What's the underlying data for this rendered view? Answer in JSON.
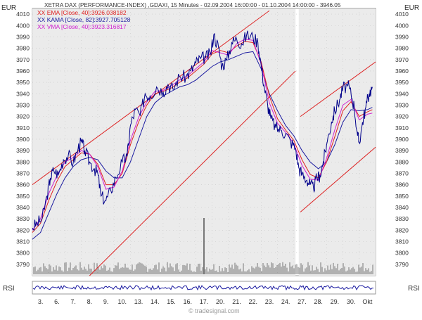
{
  "header": {
    "title": "XETRA DAX (PERFORMANCE-INDEX) ,GDAXI, 15 Minutes - 02.09.2004 16:00:00 - 01.10.2004 14:00:00 - 3946.05",
    "legend": [
      {
        "label": "XX EMA [Close, 40]:3926.038182",
        "color": "#e02020"
      },
      {
        "label": "XX KAMA [Close, 82]:3927.705128",
        "color": "#1a1aa0"
      },
      {
        "label": "XX VMA [Close, 40]:3923.316817",
        "color": "#d020d0"
      }
    ],
    "currency_left": "EUR",
    "currency_right": "EUR",
    "rsi_label_left": "RSI",
    "rsi_label_right": "RSI",
    "watermark": "© tradesignal.com"
  },
  "colors": {
    "price": "#00008b",
    "ema": "#e02020",
    "kama": "#1a1aa0",
    "vma": "#d020d0",
    "channel": "#dd2222",
    "volume": "#777777",
    "rsi": "#1a1aa0",
    "shade": "#ebebeb"
  },
  "chart_data": {
    "type": "line",
    "ylim": [
      3780,
      4015
    ],
    "y_ticks": [
      3790,
      3800,
      3810,
      3820,
      3830,
      3840,
      3850,
      3860,
      3870,
      3880,
      3890,
      3900,
      3910,
      3920,
      3930,
      3940,
      3950,
      3960,
      3970,
      3980,
      3990,
      4000,
      4010
    ],
    "x_range": [
      0,
      21
    ],
    "x_ticks": [
      {
        "x": 0.5,
        "label": "3."
      },
      {
        "x": 1.5,
        "label": "6."
      },
      {
        "x": 2.5,
        "label": "7."
      },
      {
        "x": 3.5,
        "label": "8."
      },
      {
        "x": 4.5,
        "label": "9."
      },
      {
        "x": 5.5,
        "label": "10."
      },
      {
        "x": 6.5,
        "label": "13."
      },
      {
        "x": 7.5,
        "label": "14."
      },
      {
        "x": 8.5,
        "label": "15."
      },
      {
        "x": 9.5,
        "label": "16."
      },
      {
        "x": 10.5,
        "label": "17."
      },
      {
        "x": 11.5,
        "label": "20."
      },
      {
        "x": 12.5,
        "label": "21."
      },
      {
        "x": 13.5,
        "label": "22."
      },
      {
        "x": 14.5,
        "label": "23."
      },
      {
        "x": 15.5,
        "label": "24."
      },
      {
        "x": 16.5,
        "label": "27."
      },
      {
        "x": 17.5,
        "label": "28."
      },
      {
        "x": 18.5,
        "label": "29."
      },
      {
        "x": 19.5,
        "label": "30."
      },
      {
        "x": 20.5,
        "label": "Okt"
      }
    ],
    "price": [
      [
        0.0,
        3822
      ],
      [
        0.3,
        3826
      ],
      [
        0.6,
        3830
      ],
      [
        0.9,
        3850
      ],
      [
        1.1,
        3866
      ],
      [
        1.3,
        3873
      ],
      [
        1.6,
        3869
      ],
      [
        1.9,
        3882
      ],
      [
        2.2,
        3886
      ],
      [
        2.5,
        3879
      ],
      [
        2.8,
        3892
      ],
      [
        3.0,
        3898
      ],
      [
        3.2,
        3890
      ],
      [
        3.5,
        3880
      ],
      [
        3.8,
        3874
      ],
      [
        4.0,
        3870
      ],
      [
        4.2,
        3850
      ],
      [
        4.5,
        3846
      ],
      [
        4.8,
        3855
      ],
      [
        5.1,
        3866
      ],
      [
        5.5,
        3880
      ],
      [
        5.8,
        3885
      ],
      [
        6.0,
        3912
      ],
      [
        6.3,
        3926
      ],
      [
        6.6,
        3921
      ],
      [
        6.9,
        3940
      ],
      [
        7.2,
        3938
      ],
      [
        7.6,
        3946
      ],
      [
        8.0,
        3942
      ],
      [
        8.3,
        3948
      ],
      [
        8.6,
        3944
      ],
      [
        9.0,
        3955
      ],
      [
        9.4,
        3955
      ],
      [
        9.7,
        3960
      ],
      [
        10.0,
        3967
      ],
      [
        10.3,
        3971
      ],
      [
        10.6,
        3972
      ],
      [
        10.9,
        3975
      ],
      [
        11.1,
        3992
      ],
      [
        11.4,
        3980
      ],
      [
        11.6,
        3964
      ],
      [
        11.9,
        3970
      ],
      [
        12.2,
        3985
      ],
      [
        12.5,
        3988
      ],
      [
        12.8,
        3984
      ],
      [
        13.1,
        3991
      ],
      [
        13.5,
        3990
      ],
      [
        13.8,
        3985
      ],
      [
        14.0,
        3965
      ],
      [
        14.2,
        3945
      ],
      [
        14.4,
        3930
      ],
      [
        14.6,
        3918
      ],
      [
        14.9,
        3910
      ],
      [
        15.2,
        3908
      ],
      [
        15.5,
        3905
      ],
      [
        15.8,
        3898
      ],
      [
        16.1,
        3892
      ],
      [
        16.3,
        3875
      ],
      [
        16.5,
        3869
      ],
      [
        16.8,
        3864
      ],
      [
        17.0,
        3860
      ],
      [
        17.2,
        3857
      ],
      [
        17.4,
        3866
      ],
      [
        17.6,
        3868
      ],
      [
        17.8,
        3880
      ],
      [
        18.0,
        3895
      ],
      [
        18.3,
        3915
      ],
      [
        18.5,
        3925
      ],
      [
        18.8,
        3935
      ],
      [
        19.0,
        3945
      ],
      [
        19.3,
        3947
      ],
      [
        19.5,
        3940
      ],
      [
        19.7,
        3928
      ],
      [
        19.9,
        3903
      ],
      [
        20.0,
        3897
      ],
      [
        20.2,
        3915
      ],
      [
        20.4,
        3928
      ],
      [
        20.6,
        3940
      ],
      [
        20.8,
        3946
      ]
    ],
    "ema": [
      [
        0.0,
        3818
      ],
      [
        0.5,
        3826
      ],
      [
        1.0,
        3846
      ],
      [
        1.5,
        3863
      ],
      [
        2.0,
        3876
      ],
      [
        2.5,
        3882
      ],
      [
        3.0,
        3888
      ],
      [
        3.5,
        3887
      ],
      [
        4.0,
        3878
      ],
      [
        4.5,
        3860
      ],
      [
        5.0,
        3860
      ],
      [
        5.5,
        3870
      ],
      [
        6.0,
        3895
      ],
      [
        6.5,
        3915
      ],
      [
        7.0,
        3930
      ],
      [
        7.5,
        3940
      ],
      [
        8.0,
        3942
      ],
      [
        8.5,
        3945
      ],
      [
        9.0,
        3950
      ],
      [
        9.5,
        3954
      ],
      [
        10.0,
        3960
      ],
      [
        10.5,
        3966
      ],
      [
        11.0,
        3975
      ],
      [
        11.5,
        3978
      ],
      [
        12.0,
        3976
      ],
      [
        12.5,
        3982
      ],
      [
        13.0,
        3986
      ],
      [
        13.5,
        3985
      ],
      [
        14.0,
        3968
      ],
      [
        14.5,
        3938
      ],
      [
        15.0,
        3918
      ],
      [
        15.5,
        3908
      ],
      [
        16.0,
        3899
      ],
      [
        16.5,
        3882
      ],
      [
        17.0,
        3869
      ],
      [
        17.5,
        3866
      ],
      [
        18.0,
        3880
      ],
      [
        18.5,
        3902
      ],
      [
        19.0,
        3925
      ],
      [
        19.5,
        3933
      ],
      [
        20.0,
        3920
      ],
      [
        20.5,
        3924
      ],
      [
        20.8,
        3926
      ]
    ],
    "vma": [
      [
        0.0,
        3820
      ],
      [
        0.5,
        3830
      ],
      [
        1.0,
        3852
      ],
      [
        1.5,
        3868
      ],
      [
        2.0,
        3880
      ],
      [
        2.5,
        3884
      ],
      [
        3.0,
        3890
      ],
      [
        3.5,
        3887
      ],
      [
        4.0,
        3876
      ],
      [
        4.5,
        3856
      ],
      [
        5.0,
        3858
      ],
      [
        5.5,
        3872
      ],
      [
        6.0,
        3899
      ],
      [
        6.5,
        3919
      ],
      [
        7.0,
        3933
      ],
      [
        7.5,
        3942
      ],
      [
        8.0,
        3943
      ],
      [
        8.5,
        3947
      ],
      [
        9.0,
        3952
      ],
      [
        9.5,
        3956
      ],
      [
        10.0,
        3962
      ],
      [
        10.5,
        3968
      ],
      [
        11.0,
        3978
      ],
      [
        11.5,
        3976
      ],
      [
        12.0,
        3974
      ],
      [
        12.5,
        3984
      ],
      [
        13.0,
        3988
      ],
      [
        13.5,
        3987
      ],
      [
        14.0,
        3966
      ],
      [
        14.5,
        3932
      ],
      [
        15.0,
        3914
      ],
      [
        15.5,
        3906
      ],
      [
        16.0,
        3896
      ],
      [
        16.5,
        3877
      ],
      [
        17.0,
        3865
      ],
      [
        17.5,
        3864
      ],
      [
        18.0,
        3883
      ],
      [
        18.5,
        3908
      ],
      [
        19.0,
        3930
      ],
      [
        19.5,
        3935
      ],
      [
        20.0,
        3917
      ],
      [
        20.5,
        3922
      ],
      [
        20.8,
        3923
      ]
    ],
    "kama": [
      [
        0.0,
        3812
      ],
      [
        0.5,
        3818
      ],
      [
        1.0,
        3835
      ],
      [
        1.5,
        3852
      ],
      [
        2.0,
        3866
      ],
      [
        2.5,
        3876
      ],
      [
        3.0,
        3882
      ],
      [
        3.5,
        3884
      ],
      [
        4.0,
        3882
      ],
      [
        4.5,
        3872
      ],
      [
        5.0,
        3866
      ],
      [
        5.5,
        3866
      ],
      [
        6.0,
        3880
      ],
      [
        6.5,
        3900
      ],
      [
        7.0,
        3920
      ],
      [
        7.5,
        3932
      ],
      [
        8.0,
        3938
      ],
      [
        8.5,
        3942
      ],
      [
        9.0,
        3946
      ],
      [
        9.5,
        3948
      ],
      [
        10.0,
        3952
      ],
      [
        10.5,
        3958
      ],
      [
        11.0,
        3964
      ],
      [
        11.5,
        3968
      ],
      [
        12.0,
        3970
      ],
      [
        12.5,
        3973
      ],
      [
        13.0,
        3976
      ],
      [
        13.5,
        3977
      ],
      [
        14.0,
        3962
      ],
      [
        14.5,
        3940
      ],
      [
        15.0,
        3925
      ],
      [
        15.5,
        3912
      ],
      [
        16.0,
        3903
      ],
      [
        16.5,
        3890
      ],
      [
        17.0,
        3880
      ],
      [
        17.5,
        3874
      ],
      [
        18.0,
        3880
      ],
      [
        18.5,
        3895
      ],
      [
        19.0,
        3915
      ],
      [
        19.5,
        3926
      ],
      [
        20.0,
        3925
      ],
      [
        20.5,
        3926
      ],
      [
        20.8,
        3928
      ]
    ],
    "channels": [
      {
        "from": [
          0.0,
          3860
        ],
        "to": [
          14.5,
          4013
        ]
      },
      {
        "from": [
          3.5,
          3780
        ],
        "to": [
          16.1,
          3960
        ]
      },
      {
        "from": [
          16.4,
          3920
        ],
        "to": [
          21.0,
          3968
        ]
      },
      {
        "from": [
          16.4,
          3836
        ],
        "to": [
          21.0,
          3893
        ]
      }
    ],
    "shade_ranges": [
      [
        0.0,
        16.1
      ],
      [
        16.3,
        21.0
      ]
    ],
    "volume_spike": {
      "x": 10.5,
      "value": 1.0
    },
    "volume_base": 0.18
  }
}
